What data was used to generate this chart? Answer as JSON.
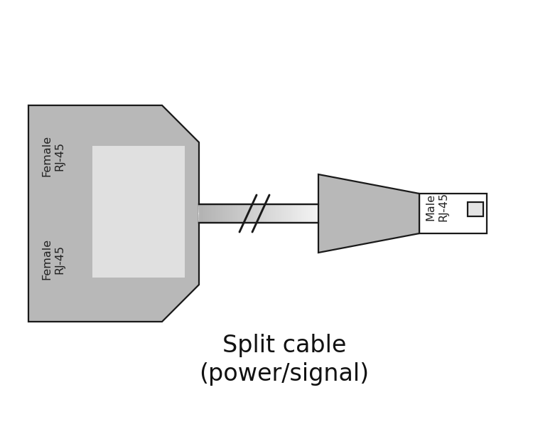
{
  "bg_color": "#ffffff",
  "body_fill": "#b8b8b8",
  "body_edge": "#1a1a1a",
  "cable_fill_mid": "#e8e8e8",
  "cable_fill_edge": "#c0c0c0",
  "port_fill": "#e0e0e0",
  "plug_fill": "#ffffff",
  "plug_tab_fill": "#e4e4e4",
  "label_top": "Female\nRJ-45",
  "label_bottom": "Female\nRJ-45",
  "label_male": "Male\nRJ-45",
  "caption_line1": "Split cable",
  "caption_line2": "(power/signal)",
  "caption_fontsize": 24,
  "label_fontsize": 11.5
}
